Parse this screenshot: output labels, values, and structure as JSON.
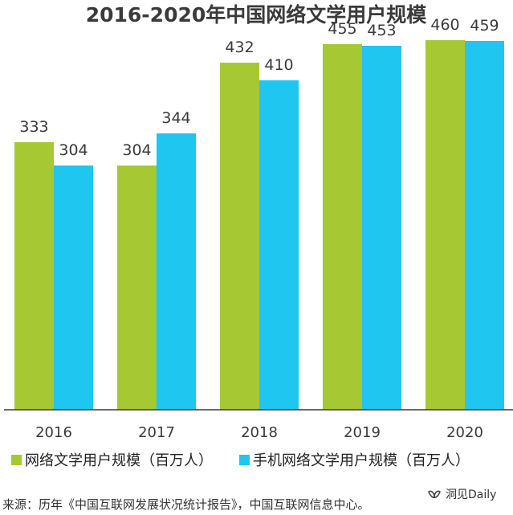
{
  "chart_data": {
    "type": "bar",
    "title": "2016-2020年中国网络文学用户规模",
    "categories": [
      "2016",
      "2017",
      "2018",
      "2019",
      "2020"
    ],
    "series": [
      {
        "name": "网络文学用户规模（百万人）",
        "color": "#a6c832",
        "values": [
          333,
          304,
          432,
          455,
          460
        ]
      },
      {
        "name": "手机网络文学用户规模（百万人）",
        "color": "#1fc6ef",
        "values": [
          304,
          344,
          410,
          453,
          459
        ]
      }
    ],
    "ylim": [
      0,
      500
    ],
    "grid": false,
    "legend_position": "bottom",
    "xlabel": "",
    "ylabel": ""
  },
  "source": "来源：历年《中国互联网发展状况统计报告》，中国互联网信息中心。",
  "watermark": {
    "icon": "wechat-channel-icon",
    "text": "洞见Daily"
  }
}
